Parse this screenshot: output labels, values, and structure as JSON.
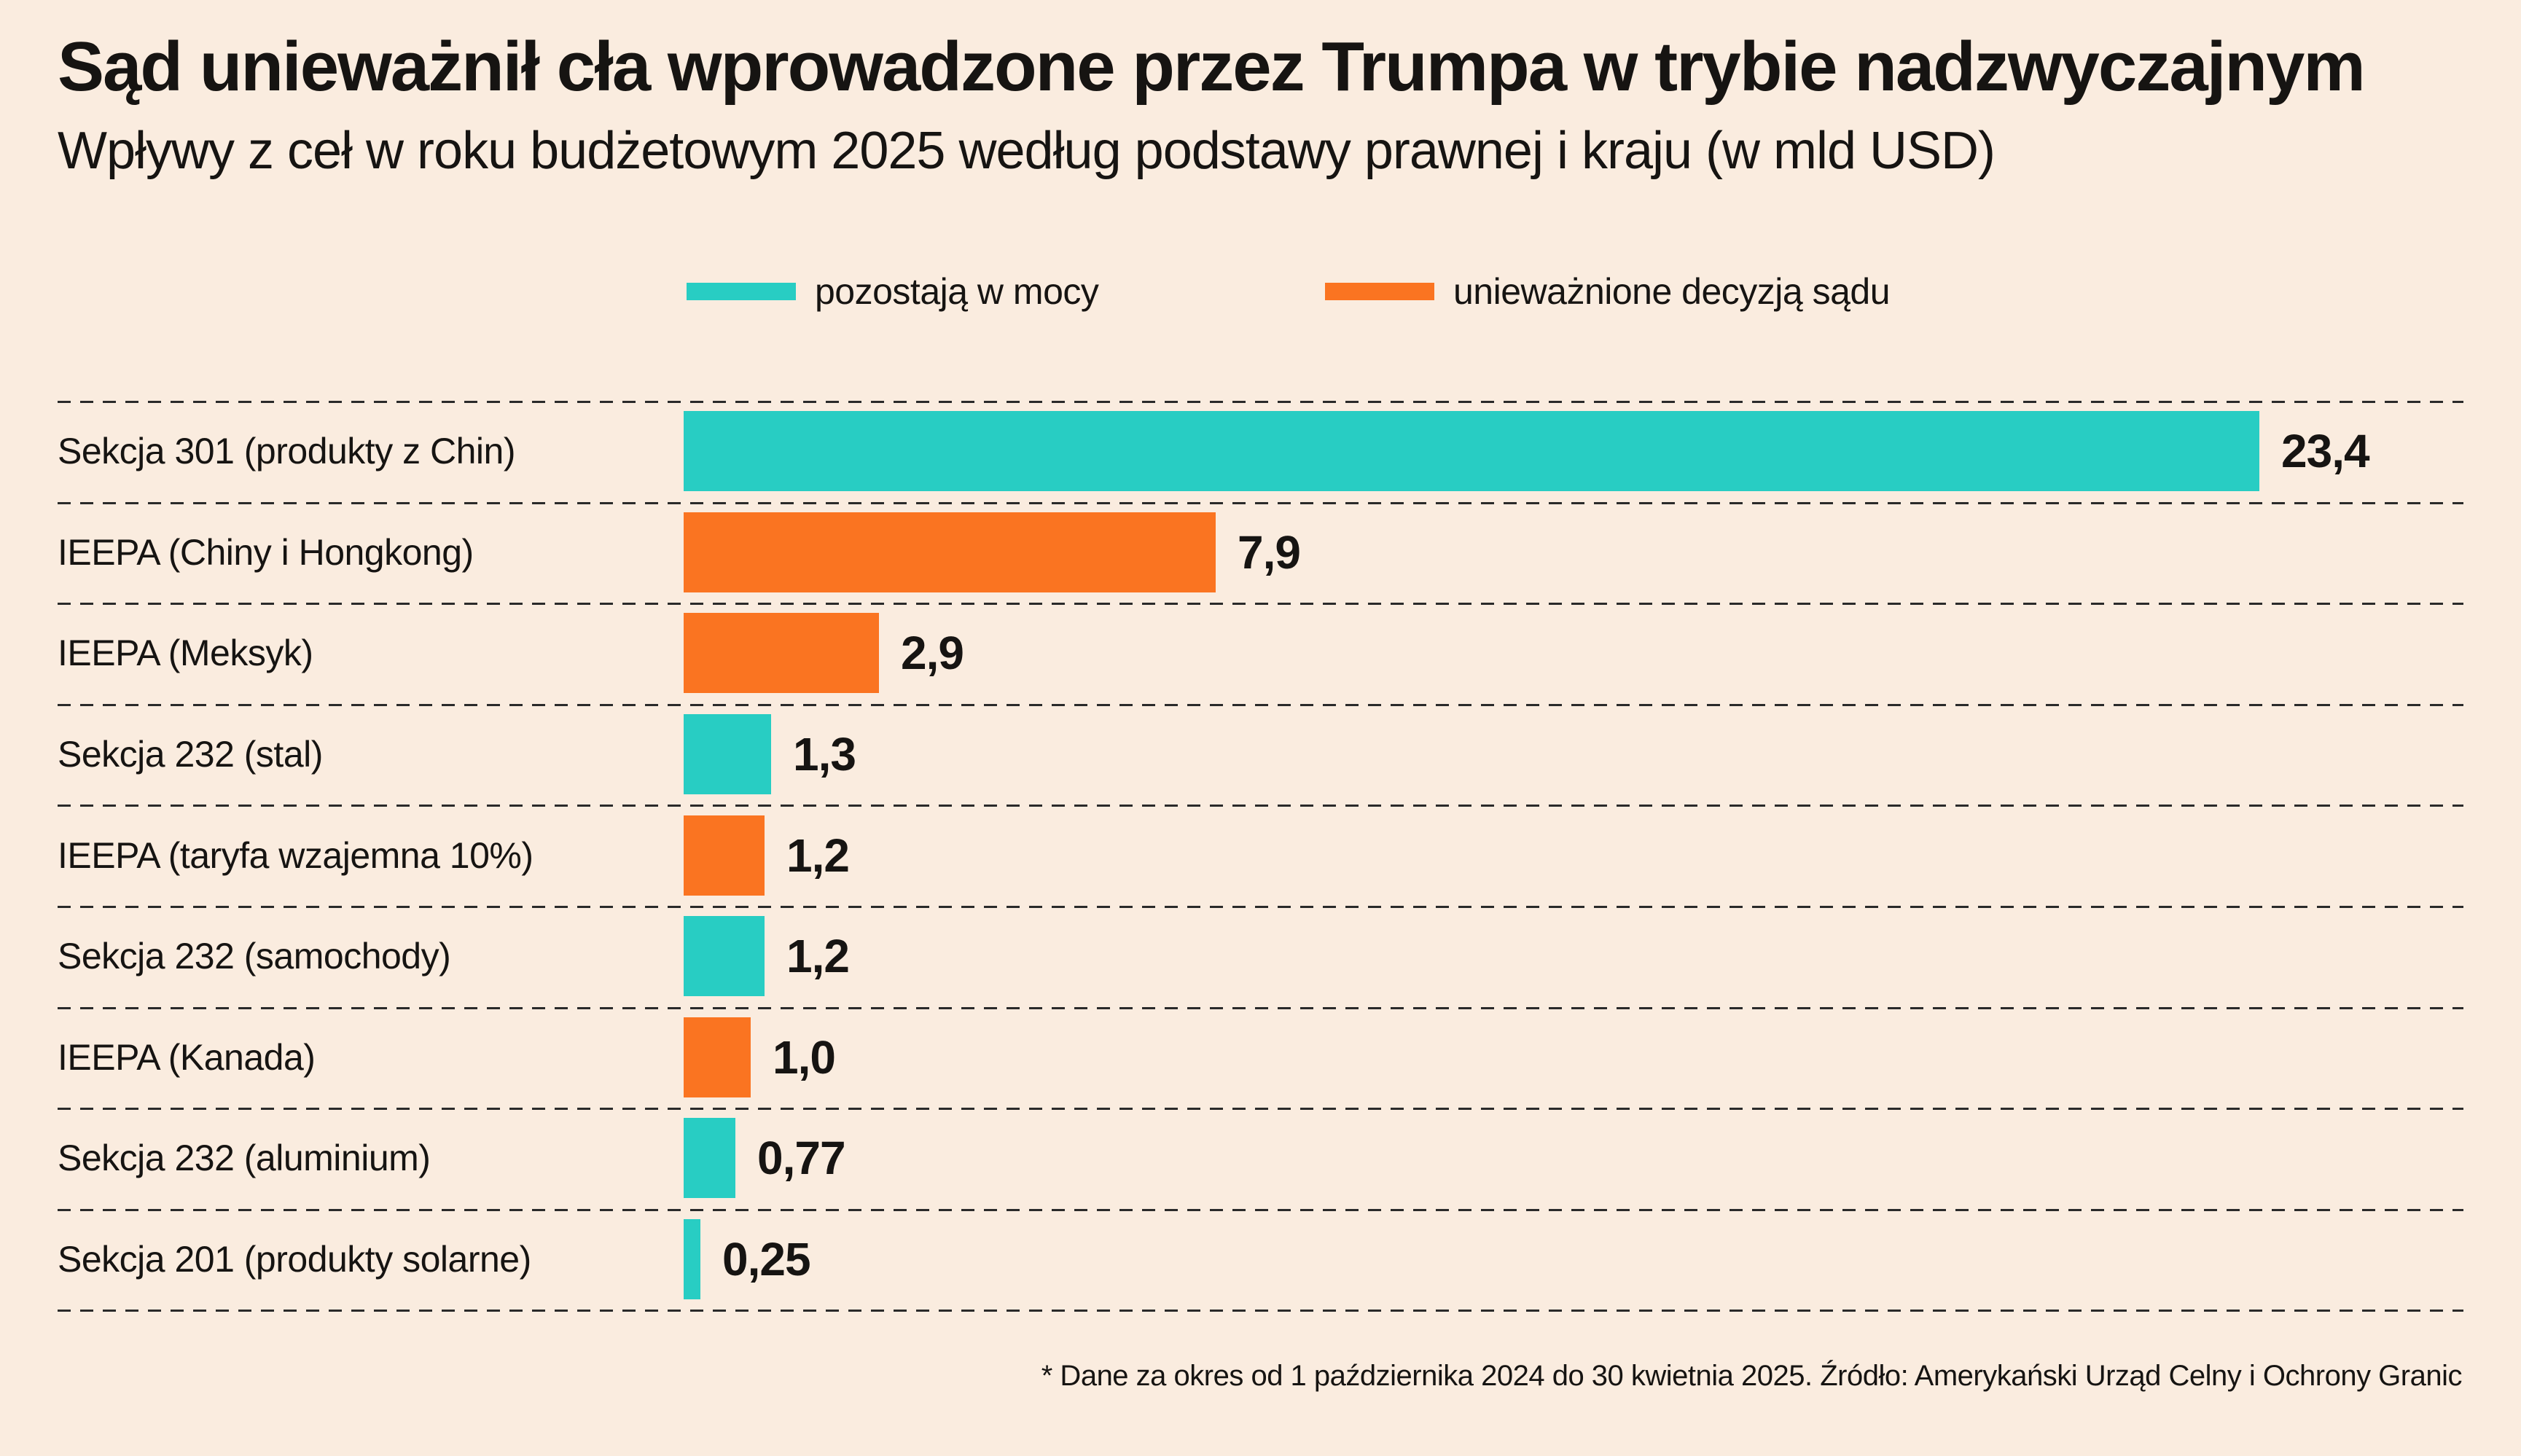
{
  "title": "Sąd unieważnił cła wprowadzone przez Trumpa w trybie nadzwyczajnym",
  "subtitle": "Wpływy z ceł w roku budżetowym 2025 według podstawy prawnej i kraju (w mld USD)",
  "legend": {
    "items": [
      {
        "id": "in_force",
        "label": "pozostają w mocy",
        "color": "#28cdc3"
      },
      {
        "id": "annulled",
        "label": "unieważnione decyzją sądu",
        "color": "#fa7421"
      }
    ]
  },
  "footnote": "* Dane za okres od 1 października 2024 do 30 kwietnia 2025. Źródło: Amerykański Urząd Celny i Ochrony Granic",
  "colors": {
    "background": "#faecdf",
    "teal": "#28cdc3",
    "orange": "#fa7421",
    "text": "#161412",
    "separator": "#2a2a2a"
  },
  "chart_data": {
    "type": "bar",
    "orientation": "horizontal",
    "unit": "mld USD",
    "xlim": [
      0,
      23.4
    ],
    "grid": "dashed row separators",
    "legend_position": "top",
    "rows": [
      {
        "label": "Sekcja 301 (produkty z Chin)",
        "value": 23.4,
        "display": "23,4",
        "series": "in_force"
      },
      {
        "label": "IEEPA (Chiny i Hongkong)",
        "value": 7.9,
        "display": "7,9",
        "series": "annulled"
      },
      {
        "label": "IEEPA (Meksyk)",
        "value": 2.9,
        "display": "2,9",
        "series": "annulled"
      },
      {
        "label": "Sekcja 232 (stal)",
        "value": 1.3,
        "display": "1,3",
        "series": "in_force"
      },
      {
        "label": "IEEPA (taryfa wzajemna 10%)",
        "value": 1.2,
        "display": "1,2",
        "series": "annulled"
      },
      {
        "label": "Sekcja 232 (samochody)",
        "value": 1.2,
        "display": "1,2",
        "series": "in_force"
      },
      {
        "label": "IEEPA (Kanada)",
        "value": 1.0,
        "display": "1,0",
        "series": "annulled"
      },
      {
        "label": "Sekcja 232 (aluminium)",
        "value": 0.77,
        "display": "0,77",
        "series": "in_force"
      },
      {
        "label": "Sekcja 201 (produkty solarne)",
        "value": 0.25,
        "display": "0,25",
        "series": "in_force"
      }
    ]
  }
}
